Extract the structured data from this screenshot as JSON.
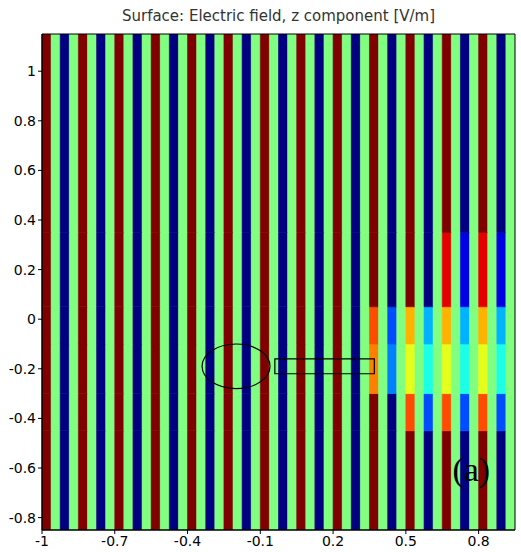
{
  "chart_data": {
    "type": "heatmap",
    "title": "Surface: Electric field, z component [V/m]",
    "xlim": [
      -1,
      0.95
    ],
    "ylim": [
      -0.85,
      1.15
    ],
    "xticks": [
      -1,
      -0.7,
      -0.4,
      -0.1,
      0.2,
      0.5,
      0.8
    ],
    "yticks": [
      -0.8,
      -0.6,
      -0.4,
      -0.2,
      0,
      0.2,
      0.4,
      0.6,
      0.8,
      1
    ],
    "zlim": [
      -1,
      1
    ],
    "x_edges": [
      -1,
      -0.9625,
      -0.925,
      -0.8875,
      -0.85,
      -0.8125,
      -0.775,
      -0.7375,
      -0.7,
      -0.6625,
      -0.625,
      -0.5875,
      -0.55,
      -0.5125,
      -0.475,
      -0.4375,
      -0.4,
      -0.3625,
      -0.325,
      -0.2875,
      -0.25,
      -0.2125,
      -0.175,
      -0.1375,
      -0.1,
      -0.0625,
      -0.025,
      0.0125,
      0.05,
      0.0875,
      0.125,
      0.1625,
      0.2,
      0.2375,
      0.275,
      0.3125,
      0.35,
      0.3875,
      0.425,
      0.4625,
      0.5,
      0.5375,
      0.575,
      0.6125,
      0.65,
      0.6875,
      0.725,
      0.7625,
      0.8,
      0.8375,
      0.875,
      0.9125,
      0.95
    ],
    "y_edges": [
      -0.85,
      -0.45,
      -0.3,
      -0.1,
      0.05,
      0.35,
      1.15
    ],
    "cells": [
      [
        1,
        0,
        -1,
        0,
        1,
        0,
        -1,
        0,
        1,
        0,
        -1,
        0,
        1,
        0,
        -1,
        0,
        1,
        0,
        -1,
        0,
        1,
        0,
        -1,
        0,
        1,
        0,
        -1,
        0,
        1,
        0,
        -1,
        0,
        1,
        0,
        -1,
        0,
        1,
        0,
        -1,
        0,
        1,
        0,
        -1,
        0,
        1,
        0,
        -1,
        0,
        1,
        0,
        -1,
        0
      ],
      [
        1,
        0,
        -1,
        0,
        1,
        0,
        -1,
        0,
        1,
        0,
        -1,
        0,
        1,
        0,
        -1,
        0,
        1,
        0,
        -1,
        0,
        1,
        0,
        -1,
        0,
        1,
        0,
        -1,
        0,
        1,
        0,
        -1,
        0,
        1,
        0,
        -1,
        0,
        1,
        0,
        -1,
        0,
        0.6,
        0,
        -0.6,
        0,
        0.6,
        0,
        -0.6,
        0,
        0.6,
        0,
        -0.6,
        0
      ],
      [
        1,
        0,
        -1,
        0,
        1,
        0,
        -1,
        0,
        1,
        0,
        -1,
        0,
        1,
        0,
        -1,
        0,
        1,
        0,
        -1,
        0,
        1,
        0,
        -1,
        0,
        1,
        0,
        -1,
        0,
        1,
        0,
        -1,
        0,
        1,
        0,
        -1,
        0,
        0.5,
        0,
        -0.5,
        0,
        0.2,
        0,
        -0.2,
        0,
        0.2,
        0,
        -0.2,
        0,
        0.2,
        0,
        -0.2,
        0
      ],
      [
        1,
        0,
        -1,
        0,
        1,
        0,
        -1,
        0,
        1,
        0,
        -1,
        0,
        1,
        0,
        -1,
        0,
        1,
        0,
        -1,
        0,
        1,
        0,
        -1,
        0,
        1,
        0,
        -1,
        0,
        1,
        0,
        -1,
        0,
        1,
        0,
        -1,
        0,
        0.6,
        0,
        -0.6,
        0,
        0.4,
        0,
        -0.4,
        0,
        0.4,
        0,
        -0.4,
        0,
        0.4,
        0,
        -0.4,
        0
      ],
      [
        1,
        0,
        -1,
        0,
        1,
        0,
        -1,
        0,
        1,
        0,
        -1,
        0,
        1,
        0,
        -1,
        0,
        1,
        0,
        -1,
        0,
        1,
        0,
        -1,
        0,
        1,
        0,
        -1,
        0,
        1,
        0,
        -1,
        0,
        1,
        0,
        -1,
        0,
        1,
        0,
        -1,
        0,
        1,
        0,
        -1,
        0,
        0.8,
        0,
        -0.8,
        0,
        0.8,
        0,
        -0.8,
        0
      ],
      [
        1,
        0,
        -1,
        0,
        1,
        0,
        -1,
        0,
        1,
        0,
        -1,
        0,
        1,
        0,
        -1,
        0,
        1,
        0,
        -1,
        0,
        1,
        0,
        -1,
        0,
        1,
        0,
        -1,
        0,
        1,
        0,
        -1,
        0,
        1,
        0,
        -1,
        0,
        1,
        0,
        -1,
        0,
        1,
        0,
        -1,
        0,
        1,
        0,
        -1,
        0,
        1,
        0,
        -1,
        0
      ]
    ],
    "shapes": {
      "ellipse": {
        "x": [
          -0.34,
          -0.06
        ],
        "y": [
          -0.28,
          -0.1
        ]
      },
      "rectangle": {
        "x": [
          -0.04,
          0.37
        ],
        "y": [
          -0.22,
          -0.16
        ]
      }
    },
    "annotations": [
      {
        "text": "(a)",
        "x": 0.77,
        "y": -0.62
      }
    ]
  }
}
